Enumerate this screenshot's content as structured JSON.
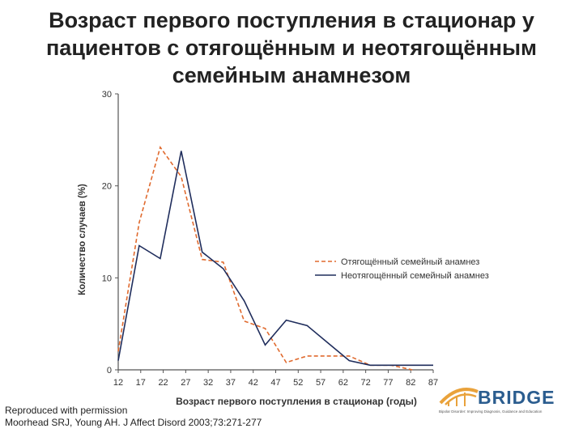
{
  "title": {
    "line1": "Возраст первого поступления в стационар у",
    "line2": "пациентов с отягощённым и неотягощённым",
    "line3": "семейным анамнезом"
  },
  "chart_data": {
    "type": "line",
    "x": [
      12,
      17,
      22,
      27,
      32,
      37,
      42,
      47,
      52,
      57,
      62,
      67,
      72,
      77,
      82,
      87
    ],
    "xticks": [
      "12",
      "17",
      "22",
      "27",
      "32",
      "37",
      "42",
      "47",
      "52",
      "57",
      "62",
      "72",
      "77",
      "82",
      "87"
    ],
    "yticks": [
      0,
      10,
      20,
      30
    ],
    "xlabel": "Возраст первого поступления в стационар (годы)",
    "ylabel": "Количество случаев (%)",
    "ylim": [
      0,
      30
    ],
    "grid": false,
    "legend_position": "right",
    "series": [
      {
        "name": "Отягощённый семейный анамнез",
        "style": "dashed",
        "color": "#e06a2e",
        "points": [
          [
            12,
            2
          ],
          [
            17,
            16
          ],
          [
            22,
            24.2
          ],
          [
            27,
            21
          ],
          [
            32,
            12
          ],
          [
            37,
            11.7
          ],
          [
            42,
            5.3
          ],
          [
            47,
            4.5
          ],
          [
            52,
            0.8
          ],
          [
            57,
            1.5
          ],
          [
            62,
            1.5
          ],
          [
            67,
            1.5
          ],
          [
            72,
            0.5
          ],
          [
            77,
            0.5
          ],
          [
            82,
            0
          ]
        ]
      },
      {
        "name": "Неотягощённый семейный анамнез",
        "style": "solid",
        "color": "#1f2d5c",
        "points": [
          [
            12,
            1
          ],
          [
            17,
            13.5
          ],
          [
            22,
            12.1
          ],
          [
            27,
            23.8
          ],
          [
            32,
            12.8
          ],
          [
            37,
            11
          ],
          [
            42,
            7.5
          ],
          [
            47,
            2.7
          ],
          [
            52,
            5.4
          ],
          [
            57,
            4.8
          ],
          [
            62,
            2.9
          ],
          [
            67,
            1
          ],
          [
            72,
            0.5
          ],
          [
            77,
            0.5
          ],
          [
            82,
            0.5
          ],
          [
            87,
            0.5
          ]
        ]
      }
    ]
  },
  "footer": {
    "line1": "Reproduced with permission",
    "line2": "Moorhead SRJ, Young AH. J Affect Disord 2003;73:271-277"
  },
  "logo": {
    "word": "BRIDGE",
    "tagline": "Bipolar Disorder: Improving Diagnosis, Guidance and Education"
  },
  "colors": {
    "accent": "#e06a2e",
    "dark": "#1f2d5c",
    "brand": "#2b5d8f"
  }
}
